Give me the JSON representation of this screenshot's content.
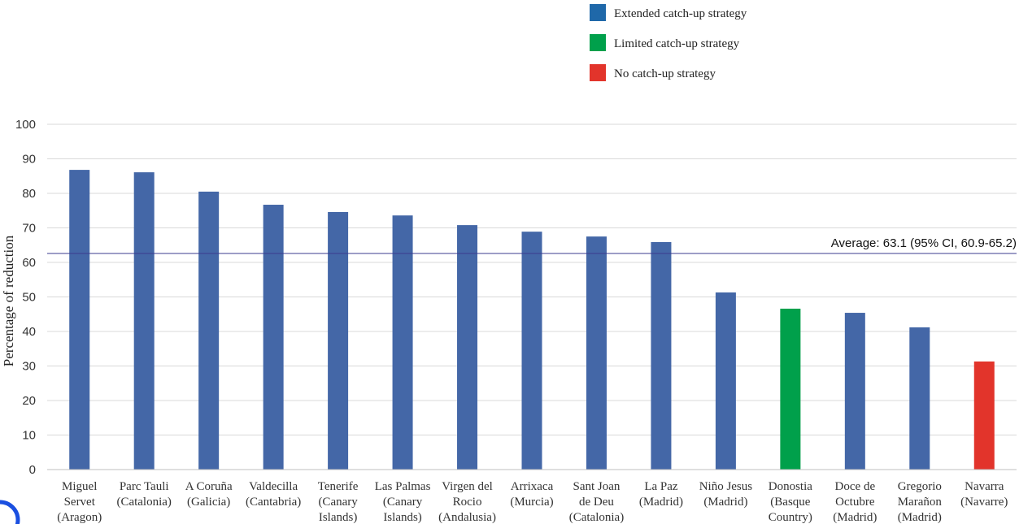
{
  "chart_data": {
    "type": "bar",
    "ylabel": "Percentage of reduction",
    "ylim": [
      0,
      100
    ],
    "yticks": [
      0,
      10,
      20,
      30,
      40,
      50,
      60,
      70,
      80,
      90,
      100
    ],
    "grid": true,
    "legend_position": "top-right",
    "legend": [
      {
        "label": "Extended catch-up strategy",
        "color": "#1f68a9"
      },
      {
        "label": "Limited catch-up strategy",
        "color": "#00a04b"
      },
      {
        "label": "No catch-up strategy",
        "color": "#e2342b"
      }
    ],
    "bar_colors": {
      "extended": "#4467a7",
      "limited": "#00a04b",
      "none": "#e2342b"
    },
    "categories": [
      {
        "lines": [
          "Miguel",
          "Servet",
          "(Aragon)"
        ],
        "value": 86.8,
        "strategy": "extended"
      },
      {
        "lines": [
          "Parc Tauli",
          "(Catalonia)"
        ],
        "value": 86.1,
        "strategy": "extended"
      },
      {
        "lines": [
          "A Coruña",
          "(Galicia)"
        ],
        "value": 80.5,
        "strategy": "extended"
      },
      {
        "lines": [
          "Valdecilla",
          "(Cantabria)"
        ],
        "value": 76.7,
        "strategy": "extended"
      },
      {
        "lines": [
          "Tenerife",
          "(Canary",
          "Islands)"
        ],
        "value": 74.6,
        "strategy": "extended"
      },
      {
        "lines": [
          "Las Palmas",
          "(Canary",
          "Islands)"
        ],
        "value": 73.6,
        "strategy": "extended"
      },
      {
        "lines": [
          "Virgen del",
          "Rocio",
          "(Andalusia)"
        ],
        "value": 70.8,
        "strategy": "extended"
      },
      {
        "lines": [
          "Arrixaca",
          "(Murcia)"
        ],
        "value": 68.9,
        "strategy": "extended"
      },
      {
        "lines": [
          "Sant Joan",
          "de Deu",
          "(Catalonia)"
        ],
        "value": 67.5,
        "strategy": "extended"
      },
      {
        "lines": [
          "La Paz",
          "(Madrid)"
        ],
        "value": 65.9,
        "strategy": "extended"
      },
      {
        "lines": [
          "Niño Jesus",
          "(Madrid)"
        ],
        "value": 51.3,
        "strategy": "extended"
      },
      {
        "lines": [
          "Donostia",
          "(Basque",
          "Country)"
        ],
        "value": 46.6,
        "strategy": "limited"
      },
      {
        "lines": [
          "Doce de",
          "Octubre",
          "(Madrid)"
        ],
        "value": 45.4,
        "strategy": "extended"
      },
      {
        "lines": [
          "Gregorio",
          "Marañon",
          "(Madrid)"
        ],
        "value": 41.2,
        "strategy": "extended"
      },
      {
        "lines": [
          "Navarra",
          "(Navarre)"
        ],
        "value": 31.3,
        "strategy": "none"
      }
    ],
    "average": {
      "value": 63.1,
      "label": "Average: 63.1 (95% CI, 60.9-65.2)",
      "color": "#3b3b8f"
    }
  }
}
